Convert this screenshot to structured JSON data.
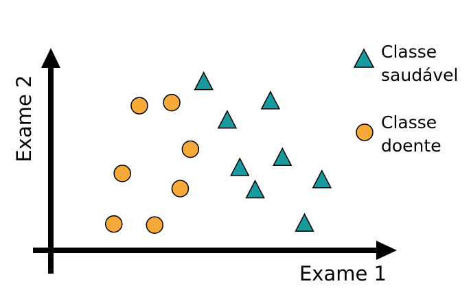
{
  "chart_data": {
    "type": "scatter",
    "title": "",
    "xlabel": "Exame 1",
    "ylabel": "Exame 2",
    "xlim": [
      0,
      100
    ],
    "ylim": [
      0,
      100
    ],
    "grid": false,
    "legend_position": "top-right",
    "series": [
      {
        "name": "Classe saudável",
        "legend_lines": [
          "Classe",
          "saudável"
        ],
        "marker": "triangle",
        "color": "#1a9a9e",
        "points": [
          {
            "x": 44.9,
            "y": 83.5
          },
          {
            "x": 64.5,
            "y": 74.0
          },
          {
            "x": 51.8,
            "y": 64.5
          },
          {
            "x": 68.0,
            "y": 46.0
          },
          {
            "x": 55.5,
            "y": 41.0
          },
          {
            "x": 79.6,
            "y": 35.0
          },
          {
            "x": 60.0,
            "y": 30.0
          },
          {
            "x": 74.5,
            "y": 13.5
          }
        ]
      },
      {
        "name": "Classe doente",
        "legend_lines": [
          "Classe",
          "doente"
        ],
        "marker": "circle",
        "color": "#f7a93a",
        "points": [
          {
            "x": 26.0,
            "y": 71.5
          },
          {
            "x": 35.5,
            "y": 73.0
          },
          {
            "x": 41.0,
            "y": 50.0
          },
          {
            "x": 21.0,
            "y": 38.0
          },
          {
            "x": 38.0,
            "y": 30.5
          },
          {
            "x": 18.5,
            "y": 13.0
          },
          {
            "x": 30.5,
            "y": 12.5
          }
        ]
      }
    ]
  }
}
